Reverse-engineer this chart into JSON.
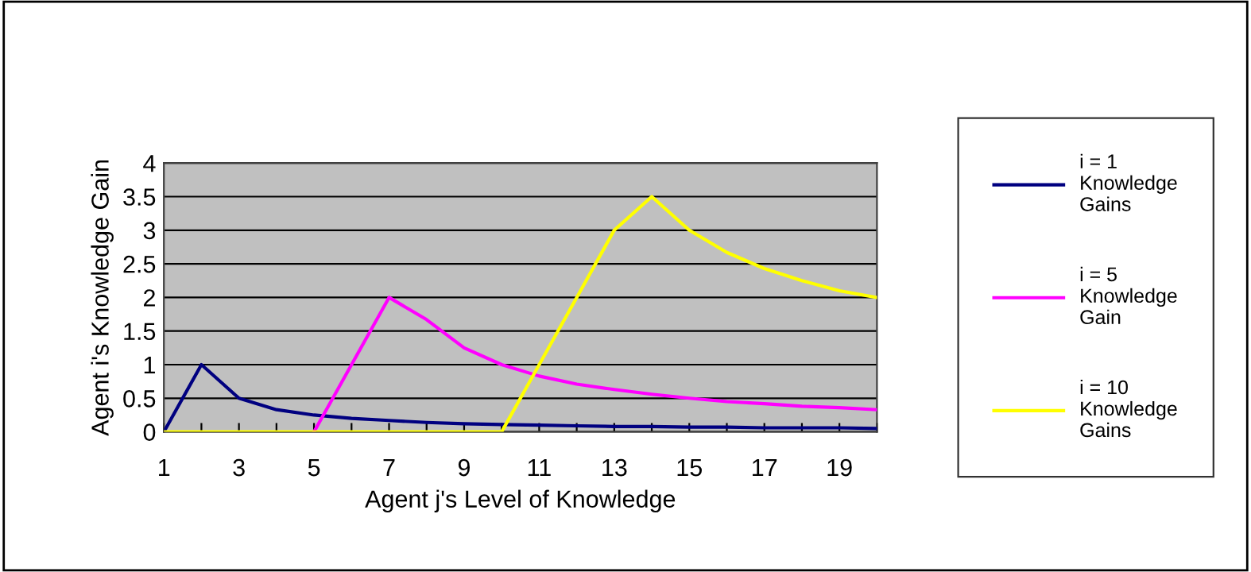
{
  "chart_data": {
    "type": "line",
    "xlabel": "Agent j's Level of Knowledge",
    "ylabel": "Agent i's Knowledge Gain",
    "categories": [
      "1",
      null,
      "3",
      null,
      "5",
      null,
      "7",
      null,
      "9",
      null,
      "11",
      null,
      "13",
      null,
      "15",
      null,
      "17",
      null,
      "19",
      null
    ],
    "series": [
      {
        "name": "i = 1\nKnowledge\nGains",
        "color": "#000080",
        "values": [
          0,
          1,
          0.5,
          0.33,
          0.25,
          0.2,
          0.17,
          0.14,
          0.12,
          0.11,
          0.1,
          0.09,
          0.08,
          0.08,
          0.07,
          0.07,
          0.06,
          0.06,
          0.06,
          0.05
        ]
      },
      {
        "name": "i = 5\nKnowledge\nGain",
        "color": "#ff00ff",
        "values": [
          null,
          null,
          null,
          null,
          0,
          1,
          2,
          1.67,
          1.25,
          1.0,
          0.83,
          0.71,
          0.63,
          0.56,
          0.5,
          0.45,
          0.42,
          0.38,
          0.36,
          0.33
        ]
      },
      {
        "name": "i = 10\nKnowledge\nGains",
        "color": "#ffff00",
        "values": [
          0,
          0,
          0,
          0,
          0,
          0,
          0,
          0,
          0,
          0,
          1,
          2,
          3,
          3.5,
          3.0,
          2.67,
          2.43,
          2.25,
          2.1,
          2.0
        ]
      }
    ],
    "ylim": [
      0,
      4
    ],
    "yticks": [
      0,
      0.5,
      1,
      1.5,
      2,
      2.5,
      3,
      3.5,
      4
    ],
    "grid": "y",
    "legend": "right",
    "marker": "none",
    "line_style": "solid"
  }
}
